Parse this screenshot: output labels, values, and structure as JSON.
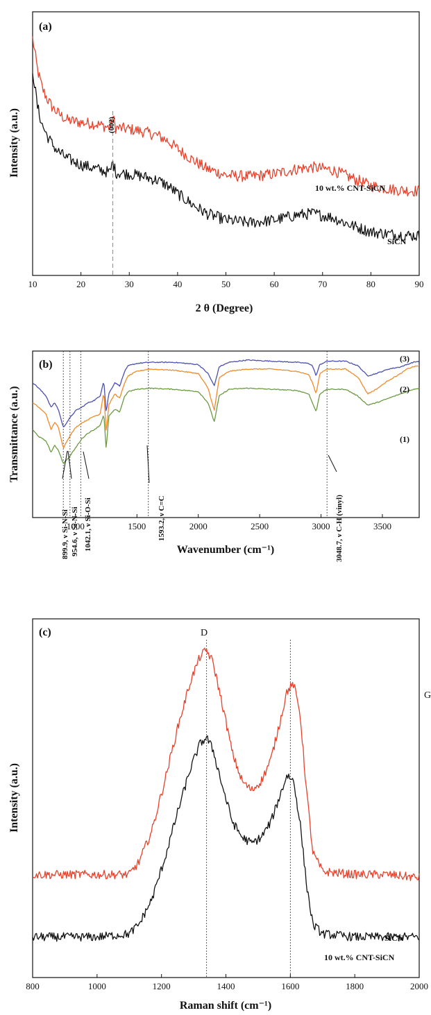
{
  "colors": {
    "red": "#e8412b",
    "black": "#111111",
    "blue": "#4a4fb0",
    "orange": "#f08a2a",
    "green": "#6a9a40"
  },
  "chart_data": [
    {
      "panel": "(a)",
      "type": "line",
      "xlabel": "2 θ (Degree)",
      "ylabel": "Intensity (a.u.)",
      "xlim": [
        10,
        90
      ],
      "xticks": [
        "10",
        "20",
        "30",
        "40",
        "50",
        "60",
        "70",
        "80",
        "90"
      ],
      "yticks_shown": false,
      "annotations": [
        {
          "text": "(002)",
          "x": 26.6
        }
      ],
      "series": [
        {
          "name": "10 wt.% CNT-SiCN",
          "color": "#e8412b",
          "x": [
            10,
            11,
            12,
            13,
            14,
            15,
            17,
            20,
            23,
            26,
            26.6,
            27.2,
            30,
            33,
            36,
            38,
            40,
            43,
            46,
            50,
            55,
            60,
            65,
            68,
            72,
            76,
            80,
            85,
            90
          ],
          "y": [
            90,
            78,
            71,
            67,
            64,
            62,
            59,
            58,
            57.5,
            56,
            60,
            56,
            55.5,
            54.5,
            53,
            51,
            48,
            44,
            40.5,
            38,
            37.5,
            38.5,
            40.5,
            41,
            40,
            37,
            34,
            32.5,
            32
          ]
        },
        {
          "name": "SiCN",
          "color": "#111111",
          "x": [
            10,
            11,
            12,
            13,
            14,
            15,
            17,
            20,
            23,
            26,
            26.6,
            27.2,
            30,
            33,
            36,
            38,
            40,
            43,
            46,
            50,
            55,
            60,
            65,
            68,
            72,
            76,
            80,
            85,
            90
          ],
          "y": [
            78,
            64,
            57,
            53,
            50,
            47.5,
            44.5,
            42,
            40.5,
            39,
            43,
            39,
            38.5,
            37.5,
            36,
            34,
            31,
            27,
            23.5,
            21,
            20,
            21,
            23,
            23.5,
            22,
            19,
            16.5,
            15.5,
            15
          ]
        }
      ]
    },
    {
      "panel": "(b)",
      "type": "line",
      "xlabel": "Wavenumber (cm⁻¹)",
      "ylabel": "Transmittance (a.u.)",
      "xlim": [
        650,
        3800
      ],
      "xticks": [
        "1000",
        "1500",
        "2000",
        "2500",
        "3000",
        "3500"
      ],
      "yticks_shown": false,
      "annotations": [
        {
          "text": "899.9, ν Si-N-Si",
          "x": 899.9
        },
        {
          "text": "954.6, ν Si-N-Si",
          "x": 954.6
        },
        {
          "text": "1042.1, ν Si-O-Si",
          "x": 1042.1
        },
        {
          "text": "1593.2, ν C=C",
          "x": 1593.2
        },
        {
          "text": "3048.7, ν C-H (vinyl)",
          "x": 3048.7
        }
      ],
      "series": [
        {
          "name": "(3)",
          "color": "#4a4fb0",
          "x": [
            650,
            700,
            760,
            800,
            830,
            860,
            900,
            950,
            1000,
            1050,
            1100,
            1150,
            1200,
            1230,
            1250,
            1270,
            1320,
            1360,
            1400,
            1430,
            1500,
            1600,
            1800,
            2000,
            2080,
            2130,
            2170,
            2250,
            2400,
            2600,
            2800,
            2900,
            2930,
            2960,
            2990,
            3050,
            3200,
            3300,
            3380,
            3450,
            3550,
            3650,
            3700,
            3750,
            3800
          ],
          "y": [
            80,
            75,
            68,
            58,
            62,
            56,
            40,
            48,
            55,
            58,
            62,
            64,
            68,
            82,
            53,
            70,
            80,
            77,
            90,
            95,
            97,
            98,
            98,
            96,
            88,
            77,
            94,
            98,
            100,
            99,
            98,
            97,
            95,
            86,
            96,
            99,
            99,
            95,
            86,
            88,
            92,
            94,
            96,
            98,
            99
          ]
        },
        {
          "name": "(2)",
          "color": "#f08a2a",
          "x": [
            650,
            700,
            760,
            800,
            830,
            860,
            900,
            950,
            1000,
            1050,
            1100,
            1150,
            1200,
            1230,
            1250,
            1270,
            1320,
            1360,
            1400,
            1430,
            1500,
            1600,
            1800,
            2000,
            2080,
            2130,
            2170,
            2250,
            2400,
            2600,
            2800,
            2900,
            2930,
            2960,
            2990,
            3050,
            3200,
            3300,
            3380,
            3450,
            3550,
            3650,
            3700,
            3750,
            3800
          ],
          "y": [
            62,
            58,
            52,
            38,
            45,
            40,
            22,
            32,
            40,
            44,
            47,
            50,
            52,
            72,
            35,
            60,
            70,
            66,
            80,
            86,
            90,
            92,
            91,
            88,
            75,
            55,
            84,
            90,
            92,
            92,
            90,
            87,
            80,
            70,
            88,
            92,
            92,
            85,
            70,
            74,
            82,
            88,
            92,
            94,
            95
          ]
        },
        {
          "name": "(1)",
          "color": "#6a9a40",
          "x": [
            650,
            700,
            760,
            800,
            830,
            860,
            900,
            950,
            1000,
            1050,
            1100,
            1150,
            1200,
            1230,
            1250,
            1270,
            1320,
            1360,
            1400,
            1430,
            1500,
            1600,
            1800,
            2000,
            2080,
            2130,
            2170,
            2250,
            2400,
            2600,
            2800,
            2900,
            2930,
            2960,
            2990,
            3050,
            3200,
            3300,
            3380,
            3450,
            3550,
            3650,
            3700,
            3750,
            3800
          ],
          "y": [
            38,
            32,
            28,
            18,
            24,
            20,
            8,
            14,
            22,
            30,
            35,
            38,
            42,
            52,
            20,
            50,
            56,
            54,
            68,
            72,
            74,
            75,
            74,
            72,
            62,
            45,
            68,
            74,
            75,
            74,
            73,
            70,
            62,
            54,
            70,
            74,
            74,
            68,
            60,
            62,
            66,
            70,
            72,
            74,
            75
          ]
        }
      ]
    },
    {
      "panel": "(c)",
      "type": "line",
      "xlabel": "Raman shift (cm⁻¹)",
      "ylabel": "Intensity (a.u.)",
      "xlim": [
        800,
        2000
      ],
      "xticks": [
        "800",
        "1000",
        "1200",
        "1400",
        "1600",
        "1800",
        "2000"
      ],
      "yticks_shown": false,
      "annotations": [
        {
          "text": "D",
          "x": 1340
        },
        {
          "text": "G",
          "x": 1600
        }
      ],
      "series": [
        {
          "name": "SiCN",
          "color": "#e8412b",
          "x": [
            800,
            900,
            1000,
            1100,
            1130,
            1170,
            1210,
            1250,
            1290,
            1320,
            1340,
            1360,
            1390,
            1420,
            1450,
            1480,
            1510,
            1540,
            1570,
            1590,
            1610,
            1630,
            1650,
            1670,
            1700,
            1800,
            1900,
            2000
          ],
          "y": [
            28,
            28,
            28,
            28,
            32,
            42,
            58,
            75,
            90,
            98,
            100,
            96,
            82,
            67,
            58,
            55,
            58,
            65,
            78,
            87,
            89,
            80,
            55,
            35,
            29,
            28,
            28,
            27
          ]
        },
        {
          "name": "10 wt.% CNT-SiCN",
          "color": "#111111",
          "x": [
            800,
            900,
            1000,
            1100,
            1130,
            1170,
            1210,
            1250,
            1290,
            1320,
            1340,
            1360,
            1390,
            1420,
            1450,
            1480,
            1510,
            1540,
            1570,
            1590,
            1610,
            1630,
            1650,
            1670,
            1700,
            1800,
            1900,
            2000
          ],
          "y": [
            8,
            8,
            8,
            9,
            12,
            20,
            33,
            48,
            62,
            70,
            72,
            68,
            56,
            45,
            40,
            38,
            40,
            45,
            54,
            60,
            58,
            45,
            25,
            12,
            9,
            8,
            8,
            8
          ]
        }
      ]
    }
  ]
}
